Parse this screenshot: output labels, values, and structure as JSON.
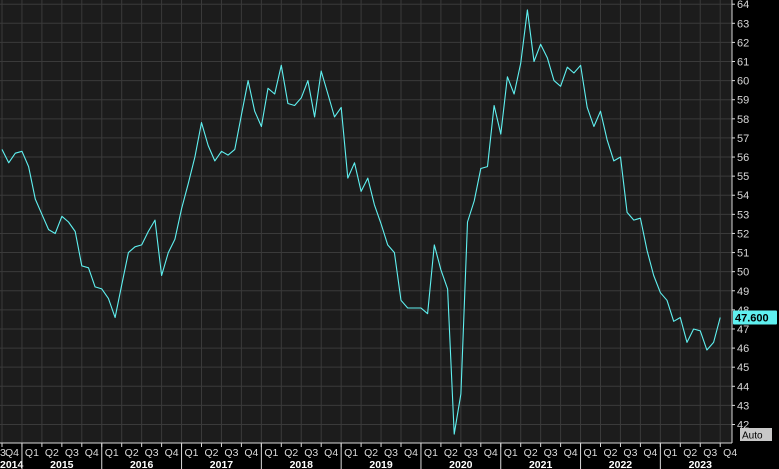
{
  "colors": {
    "background": "#000000",
    "plot_background": "#1c1c1c",
    "grid": "#3a3a3a",
    "line": "#5ff0f0",
    "last_value_box": "#5ff0f0",
    "axis_text": "#d8d8d8",
    "auto_box": "#c8c8c8"
  },
  "auto_button_label": "Auto",
  "chart_data": {
    "type": "line",
    "title": "",
    "xlabel": "",
    "ylabel": "",
    "ylim": [
      41.5,
      64
    ],
    "y_ticks": [
      42,
      43,
      44,
      45,
      46,
      47,
      48,
      49,
      50,
      51,
      52,
      53,
      54,
      55,
      56,
      57,
      58,
      59,
      60,
      61,
      62,
      63,
      64
    ],
    "grid": true,
    "x_start": "2014-10",
    "x_end": "2023-12",
    "quarter_ticks": [
      "3",
      "Q4",
      "Q1",
      "Q2",
      "Q3",
      "Q4",
      "Q1",
      "Q2",
      "Q3",
      "Q4",
      "Q1",
      "Q2",
      "Q3",
      "Q4",
      "Q1",
      "Q2",
      "Q3",
      "Q4",
      "Q1",
      "Q2",
      "Q3",
      "Q4",
      "Q1",
      "Q2",
      "Q3",
      "Q4",
      "Q1",
      "Q2",
      "Q3",
      "Q4",
      "Q1",
      "Q2",
      "Q3",
      "Q4",
      "Q1",
      "Q2",
      "Q3",
      "Q4"
    ],
    "year_ticks": [
      "2014",
      "2015",
      "2016",
      "2017",
      "2018",
      "2019",
      "2020",
      "2021",
      "2022",
      "2023"
    ],
    "last_value_label": "47.600",
    "series": [
      {
        "x": [
          "2014-10",
          "2014-11",
          "2014-12",
          "2015-01",
          "2015-02",
          "2015-03",
          "2015-04",
          "2015-05",
          "2015-06",
          "2015-07",
          "2015-08",
          "2015-09",
          "2015-10",
          "2015-11",
          "2015-12",
          "2016-01",
          "2016-02",
          "2016-03",
          "2016-04",
          "2016-05",
          "2016-06",
          "2016-07",
          "2016-08",
          "2016-09",
          "2016-10",
          "2016-11",
          "2016-12",
          "2017-01",
          "2017-02",
          "2017-03",
          "2017-04",
          "2017-05",
          "2017-06",
          "2017-07",
          "2017-08",
          "2017-09",
          "2017-10",
          "2017-11",
          "2017-12",
          "2018-01",
          "2018-02",
          "2018-03",
          "2018-04",
          "2018-05",
          "2018-06",
          "2018-07",
          "2018-08",
          "2018-09",
          "2018-10",
          "2018-11",
          "2018-12",
          "2019-01",
          "2019-02",
          "2019-03",
          "2019-04",
          "2019-05",
          "2019-06",
          "2019-07",
          "2019-08",
          "2019-09",
          "2019-10",
          "2019-11",
          "2019-12",
          "2020-01",
          "2020-02",
          "2020-03",
          "2020-04",
          "2020-05",
          "2020-06",
          "2020-07",
          "2020-08",
          "2020-09",
          "2020-10",
          "2020-11",
          "2020-12",
          "2021-01",
          "2021-02",
          "2021-03",
          "2021-04",
          "2021-05",
          "2021-06",
          "2021-07",
          "2021-08",
          "2021-09",
          "2021-10",
          "2021-11",
          "2021-12",
          "2022-01",
          "2022-02",
          "2022-03",
          "2022-04",
          "2022-05",
          "2022-06",
          "2022-07",
          "2022-08",
          "2022-09",
          "2022-10",
          "2022-11",
          "2022-12",
          "2023-01",
          "2023-02",
          "2023-03",
          "2023-04",
          "2023-05",
          "2023-06",
          "2023-07",
          "2023-08",
          "2023-09",
          "2023-10"
        ],
        "values": [
          56.4,
          55.7,
          56.2,
          56.3,
          55.5,
          53.8,
          53.0,
          52.2,
          52.0,
          52.9,
          52.6,
          52.1,
          50.3,
          50.2,
          49.2,
          49.1,
          48.6,
          47.6,
          49.3,
          51.0,
          51.3,
          51.4,
          52.1,
          52.7,
          49.8,
          51.0,
          51.7,
          53.3,
          54.6,
          56.0,
          57.8,
          56.6,
          55.8,
          56.3,
          56.1,
          56.4,
          58.2,
          60.0,
          58.4,
          57.6,
          59.6,
          59.3,
          60.8,
          58.8,
          58.7,
          59.1,
          60.0,
          58.1,
          60.5,
          59.3,
          58.1,
          58.6,
          54.9,
          55.7,
          54.2,
          54.9,
          53.5,
          52.5,
          51.4,
          51.0,
          48.5,
          48.1,
          48.1,
          48.1,
          47.8,
          51.4,
          50.1,
          49.1,
          41.5,
          43.6,
          52.6,
          53.7,
          55.4,
          55.5,
          58.7,
          57.2,
          60.2,
          59.3,
          60.9,
          63.7,
          61.0,
          61.9,
          61.2,
          60.0,
          59.7,
          60.7,
          60.4,
          60.8,
          58.6,
          57.6,
          58.4,
          56.9,
          55.8,
          56.0,
          53.1,
          52.7,
          52.8,
          51.1,
          49.8,
          48.9,
          48.5,
          47.4,
          47.6,
          46.3,
          47.0,
          46.9,
          45.9,
          46.3,
          47.6
        ]
      }
    ]
  }
}
